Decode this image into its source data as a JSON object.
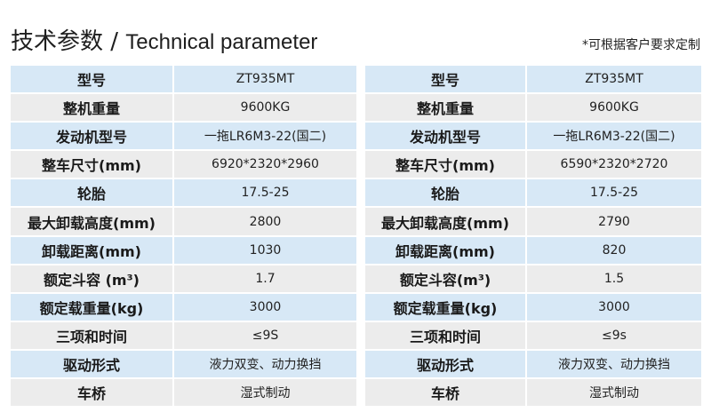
{
  "header": {
    "title_cn": "技术参数 / ",
    "title_en": "Technical parameter",
    "note": "*可根据客户要求定制"
  },
  "tables": [
    {
      "rows": [
        {
          "label": "型号",
          "value": "ZT935MT"
        },
        {
          "label": "整机重量",
          "value": "9600KG"
        },
        {
          "label": "发动机型号",
          "value": "一拖LR6M3-22(国二)"
        },
        {
          "label": "整车尺寸(mm)",
          "value": "6920*2320*2960"
        },
        {
          "label": "轮胎",
          "value": "17.5-25"
        },
        {
          "label": "最大卸载高度(mm)",
          "value": "2800"
        },
        {
          "label": "卸载距离(mm)",
          "value": "1030"
        },
        {
          "label": "额定斗容 (m³)",
          "value": "1.7"
        },
        {
          "label": "额定载重量(kg)",
          "value": "3000"
        },
        {
          "label": "三项和时间",
          "value": "≤9S"
        },
        {
          "label": "驱动形式",
          "value": "液力双变、动力换挡"
        },
        {
          "label": "车桥",
          "value": "湿式制动"
        }
      ]
    },
    {
      "rows": [
        {
          "label": "型号",
          "value": "ZT935MT"
        },
        {
          "label": "整机重量",
          "value": "9600KG"
        },
        {
          "label": "发动机型号",
          "value": "一拖LR6M3-22(国二)"
        },
        {
          "label": "整车尺寸(mm)",
          "value": "6590*2320*2720"
        },
        {
          "label": "轮胎",
          "value": "17.5-25"
        },
        {
          "label": "最大卸载高度(mm)",
          "value": "2790"
        },
        {
          "label": "卸载距离(mm)",
          "value": "820"
        },
        {
          "label": "额定斗容(m³)",
          "value": "1.5"
        },
        {
          "label": "额定载重量(kg)",
          "value": "3000"
        },
        {
          "label": "三项和时间",
          "value": "≤9s"
        },
        {
          "label": "驱动形式",
          "value": "液力双变、动力换挡"
        },
        {
          "label": "车桥",
          "value": "湿式制动"
        }
      ]
    }
  ]
}
